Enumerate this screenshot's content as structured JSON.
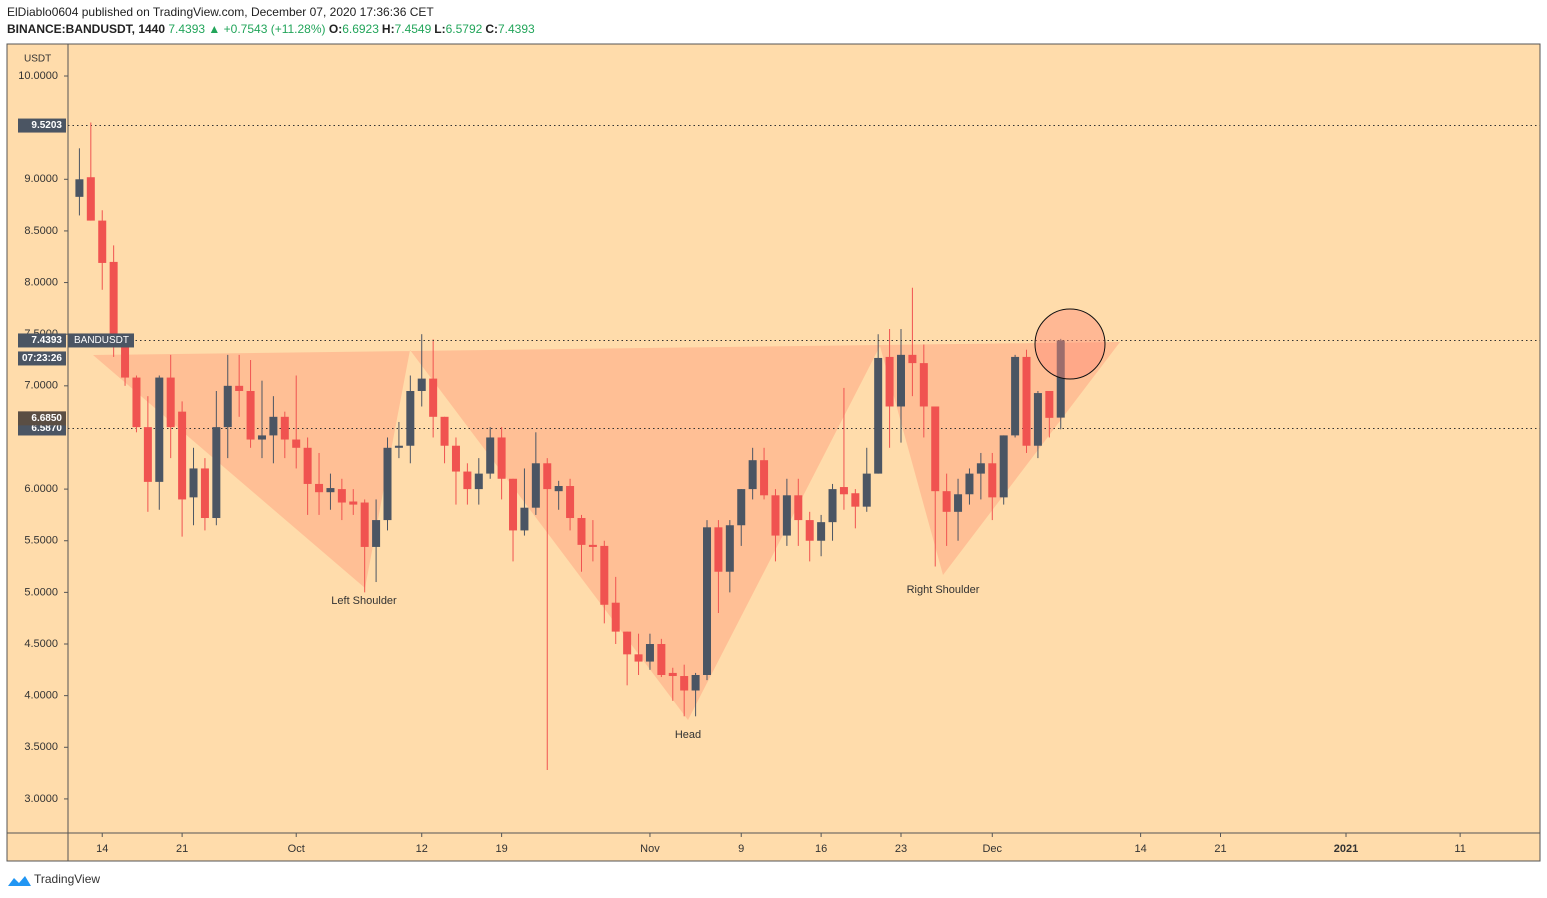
{
  "header": {
    "publisher": "ElDiablo0604 published on TradingView.com, December 07, 2020 17:36:36 CET",
    "symbol": "BINANCE:BANDUSDT, 1440",
    "last": "7.4393",
    "arrow": "▲",
    "change": "+0.7543 (+11.28%)",
    "ohlc": [
      {
        "label": "O:",
        "value": "6.6923"
      },
      {
        "label": "H:",
        "value": "7.4549"
      },
      {
        "label": "L:",
        "value": "6.5792"
      },
      {
        "label": "C:",
        "value": "7.4393"
      }
    ]
  },
  "chart_data": {
    "type": "candlestick",
    "currency": "USDT",
    "x": [
      "2020-09-12",
      "2020-09-13",
      "2020-09-14",
      "2020-09-15",
      "2020-09-16",
      "2020-09-17",
      "2020-09-18",
      "2020-09-19",
      "2020-09-20",
      "2020-09-21",
      "2020-09-22",
      "2020-09-23",
      "2020-09-24",
      "2020-09-25",
      "2020-09-26",
      "2020-09-27",
      "2020-09-28",
      "2020-09-29",
      "2020-09-30",
      "2020-10-01",
      "2020-10-02",
      "2020-10-03",
      "2020-10-04",
      "2020-10-05",
      "2020-10-06",
      "2020-10-07",
      "2020-10-08",
      "2020-10-09",
      "2020-10-10",
      "2020-10-11",
      "2020-10-12",
      "2020-10-13",
      "2020-10-14",
      "2020-10-15",
      "2020-10-16",
      "2020-10-17",
      "2020-10-18",
      "2020-10-19",
      "2020-10-20",
      "2020-10-21",
      "2020-10-22",
      "2020-10-23",
      "2020-10-24",
      "2020-10-25",
      "2020-10-26",
      "2020-10-27",
      "2020-10-28",
      "2020-10-29",
      "2020-10-30",
      "2020-10-31",
      "2020-11-01",
      "2020-11-02",
      "2020-11-03",
      "2020-11-04",
      "2020-11-05",
      "2020-11-06",
      "2020-11-07",
      "2020-11-08",
      "2020-11-09",
      "2020-11-10",
      "2020-11-11",
      "2020-11-12",
      "2020-11-13",
      "2020-11-14",
      "2020-11-15",
      "2020-11-16",
      "2020-11-17",
      "2020-11-18",
      "2020-11-19",
      "2020-11-20",
      "2020-11-21",
      "2020-11-22",
      "2020-11-23",
      "2020-11-24",
      "2020-11-25",
      "2020-11-26",
      "2020-11-27",
      "2020-11-28",
      "2020-11-29",
      "2020-11-30",
      "2020-12-01",
      "2020-12-02",
      "2020-12-03",
      "2020-12-04",
      "2020-12-05",
      "2020-12-06",
      "2020-12-07"
    ],
    "open": [
      8.83,
      9.02,
      8.6,
      8.2,
      7.44,
      7.08,
      6.6,
      6.07,
      7.08,
      6.75,
      5.92,
      6.2,
      5.72,
      6.6,
      7.0,
      6.95,
      6.48,
      6.52,
      6.7,
      6.48,
      6.4,
      6.05,
      5.97,
      6.0,
      5.88,
      5.87,
      5.44,
      5.7,
      6.4,
      6.42,
      6.95,
      7.07,
      6.7,
      6.42,
      6.17,
      6.0,
      6.15,
      6.5,
      6.1,
      5.6,
      5.82,
      6.25,
      5.98,
      6.03,
      5.72,
      5.46,
      5.45,
      4.9,
      4.62,
      4.4,
      4.33,
      4.5,
      4.22,
      4.19,
      4.05,
      4.2,
      5.63,
      5.2,
      5.65,
      6.0,
      6.28,
      5.94,
      5.55,
      5.94,
      5.7,
      5.5,
      5.68,
      6.02,
      5.96,
      5.83,
      6.15,
      7.28,
      6.8,
      7.3,
      7.22,
      6.8,
      5.98,
      5.78,
      5.95,
      6.15,
      6.25,
      5.92,
      6.52,
      7.28,
      6.42,
      6.95,
      6.6923
    ],
    "high": [
      9.3,
      9.55,
      8.7,
      8.36,
      7.5,
      7.1,
      6.9,
      7.1,
      7.3,
      6.85,
      6.4,
      6.3,
      6.95,
      7.3,
      7.3,
      7.25,
      7.05,
      6.9,
      6.75,
      7.1,
      6.5,
      6.35,
      6.15,
      6.1,
      6.0,
      5.9,
      5.9,
      6.5,
      6.65,
      7.1,
      7.5,
      7.45,
      6.7,
      6.5,
      6.25,
      6.3,
      6.6,
      6.6,
      6.1,
      6.2,
      6.55,
      6.3,
      6.08,
      6.1,
      5.75,
      5.7,
      5.5,
      5.15,
      4.62,
      4.6,
      4.6,
      4.55,
      4.27,
      4.3,
      4.22,
      5.7,
      5.7,
      5.7,
      6.0,
      6.4,
      6.4,
      6.0,
      6.1,
      6.1,
      5.78,
      5.75,
      6.05,
      6.98,
      6.0,
      6.4,
      7.5,
      7.55,
      7.55,
      7.95,
      7.4,
      6.8,
      6.15,
      6.1,
      6.2,
      6.35,
      6.35,
      6.52,
      7.3,
      7.35,
      6.95,
      6.95,
      7.4549
    ],
    "low": [
      8.65,
      8.6,
      7.93,
      7.28,
      7.0,
      6.55,
      5.78,
      5.8,
      6.3,
      5.54,
      5.65,
      5.6,
      5.65,
      6.3,
      6.7,
      6.4,
      6.3,
      6.25,
      6.3,
      6.2,
      5.75,
      5.75,
      5.8,
      5.7,
      5.75,
      5.0,
      5.1,
      5.6,
      6.3,
      6.25,
      6.8,
      6.5,
      6.25,
      5.85,
      5.85,
      5.85,
      6.1,
      5.9,
      5.3,
      5.55,
      5.75,
      3.28,
      5.8,
      5.6,
      5.2,
      5.3,
      4.7,
      4.5,
      4.1,
      4.2,
      4.25,
      4.18,
      3.95,
      3.8,
      3.8,
      4.15,
      4.8,
      5.0,
      5.45,
      5.9,
      5.9,
      5.3,
      5.45,
      5.45,
      5.3,
      5.35,
      5.5,
      5.8,
      5.62,
      5.78,
      6.15,
      6.4,
      6.45,
      6.9,
      6.5,
      5.25,
      5.45,
      5.5,
      5.85,
      5.9,
      5.7,
      5.85,
      6.5,
      6.35,
      6.3,
      6.5,
      6.5792
    ],
    "close": [
      9.0,
      8.6,
      8.19,
      7.44,
      7.08,
      6.6,
      6.07,
      7.08,
      6.6,
      5.9,
      6.2,
      5.72,
      6.6,
      7.0,
      6.95,
      6.48,
      6.52,
      6.7,
      6.48,
      6.4,
      6.05,
      5.97,
      6.01,
      5.87,
      5.85,
      5.44,
      5.7,
      6.4,
      6.42,
      6.95,
      7.07,
      6.7,
      6.42,
      6.17,
      6.0,
      6.15,
      6.5,
      6.1,
      5.6,
      5.82,
      6.25,
      6.0,
      6.03,
      5.72,
      5.46,
      5.44,
      4.88,
      4.62,
      4.4,
      4.33,
      4.5,
      4.2,
      4.19,
      4.05,
      4.2,
      5.63,
      5.2,
      5.65,
      6.0,
      6.28,
      5.94,
      5.55,
      5.94,
      5.7,
      5.5,
      5.68,
      6.0,
      5.95,
      5.83,
      6.15,
      7.27,
      6.8,
      7.3,
      7.22,
      6.8,
      5.98,
      5.78,
      5.95,
      6.15,
      6.25,
      5.92,
      6.52,
      7.28,
      6.42,
      6.93,
      6.69,
      7.4393
    ],
    "up_color": "#4b5563",
    "down_color": "#f05350",
    "ylim": [
      2.67,
      10.31
    ],
    "yticks": [
      {
        "value": 3,
        "label": "3.0000"
      },
      {
        "value": 3.5,
        "label": "3.5000"
      },
      {
        "value": 4,
        "label": "4.0000"
      },
      {
        "value": 4.5,
        "label": "4.5000"
      },
      {
        "value": 5,
        "label": "5.0000"
      },
      {
        "value": 5.5,
        "label": "5.5000"
      },
      {
        "value": 6,
        "label": "6.0000"
      },
      {
        "value": 7,
        "label": "7.0000"
      },
      {
        "value": 7.5,
        "label": "7.5000"
      },
      {
        "value": 8,
        "label": "8.0000"
      },
      {
        "value": 8.5,
        "label": "8.5000"
      },
      {
        "value": 9,
        "label": "9.0000"
      },
      {
        "value": 10,
        "label": "10.0000"
      }
    ],
    "xlim": [
      "2020-09-11",
      "2021-01-18"
    ],
    "xticks": [
      {
        "value": "2020-09-14",
        "label": "14"
      },
      {
        "value": "2020-09-21",
        "label": "21"
      },
      {
        "value": "2020-10-01",
        "label": "Oct"
      },
      {
        "value": "2020-10-12",
        "label": "12"
      },
      {
        "value": "2020-10-19",
        "label": "19"
      },
      {
        "value": "2020-11-01",
        "label": "Nov"
      },
      {
        "value": "2020-11-09",
        "label": "9"
      },
      {
        "value": "2020-11-16",
        "label": "16"
      },
      {
        "value": "2020-11-23",
        "label": "23"
      },
      {
        "value": "2020-12-01",
        "label": "Dec"
      },
      {
        "value": "2020-12-14",
        "label": "14"
      },
      {
        "value": "2020-12-21",
        "label": "21"
      },
      {
        "value": "2021-01-01",
        "label": "2021"
      },
      {
        "value": "2021-01-11",
        "label": "11"
      }
    ],
    "hlines": [
      {
        "value": 9.5203,
        "label": "9.5203"
      },
      {
        "value": 6.587,
        "label": "6.5870"
      }
    ],
    "price_label": {
      "value": 7.4393,
      "label": "7.4393",
      "name": "BANDUSDT",
      "countdown": "07:23:26"
    },
    "open_label": {
      "value": 6.685,
      "label": "6.6850"
    },
    "annotations": [
      "Left Shoulder",
      "Head",
      "Right Shoulder"
    ]
  },
  "footer": {
    "brand": "TradingView"
  }
}
